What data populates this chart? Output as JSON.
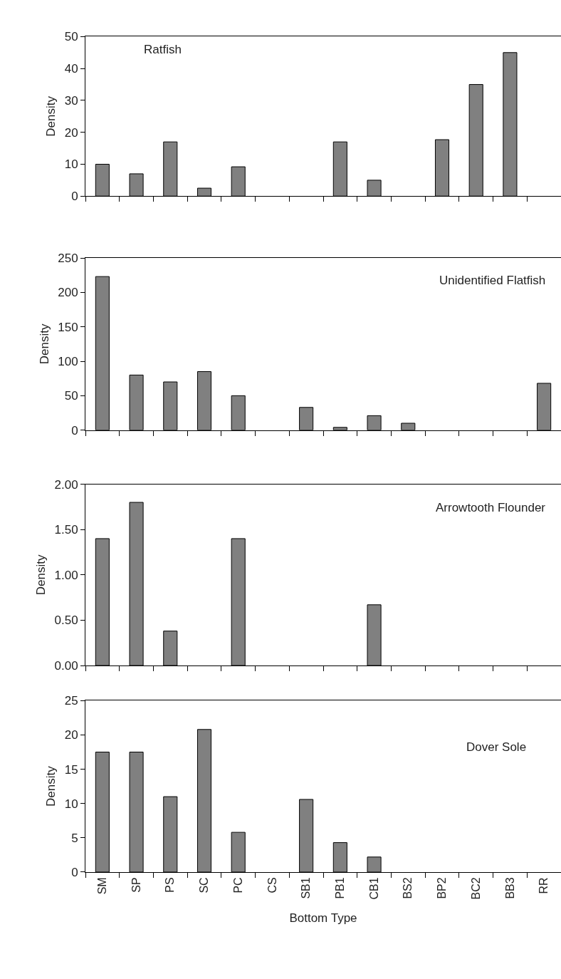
{
  "chart_data": [
    {
      "type": "bar",
      "categories": [
        "SM",
        "SP",
        "PS",
        "SC",
        "PC",
        "CS",
        "SB1",
        "PB1",
        "CB1",
        "BS2",
        "BP2",
        "BC2",
        "BB3",
        "RR"
      ],
      "values": [
        10,
        7,
        17,
        2.5,
        9.2,
        0,
        0,
        17,
        5,
        0,
        17.7,
        35,
        45,
        0
      ],
      "color": "#808080",
      "ylabel": "Density",
      "annotations": [
        "Ratfish"
      ],
      "ylim": [
        0,
        50
      ],
      "yticks": [
        0,
        10,
        20,
        30,
        40,
        50
      ],
      "tick_labels": "y",
      "grid": false,
      "legend": false
    },
    {
      "type": "bar",
      "categories": [
        "SM",
        "SP",
        "PS",
        "SC",
        "PC",
        "CS",
        "SB1",
        "PB1",
        "CB1",
        "BS2",
        "BP2",
        "BC2",
        "BB3",
        "RR"
      ],
      "values": [
        223,
        80,
        70,
        85,
        50,
        0,
        33,
        4,
        21,
        10,
        0,
        0,
        0,
        68
      ],
      "color": "#808080",
      "ylabel": "Density",
      "annotations": [
        "Unidentified Flatfish"
      ],
      "ylim": [
        0,
        250
      ],
      "yticks": [
        0,
        50,
        100,
        150,
        200,
        250
      ],
      "tick_labels": "y",
      "grid": false,
      "legend": false
    },
    {
      "type": "bar",
      "categories": [
        "SM",
        "SP",
        "PS",
        "SC",
        "PC",
        "CS",
        "SB1",
        "PB1",
        "CB1",
        "BS2",
        "BP2",
        "BC2",
        "BB3",
        "RR"
      ],
      "values": [
        1.4,
        1.8,
        0.38,
        0,
        1.4,
        0,
        0,
        0,
        0.67,
        0,
        0,
        0,
        0,
        0
      ],
      "color": "#808080",
      "ylabel": "Density",
      "annotations": [
        "Arrowtooth Flounder"
      ],
      "ylim": [
        0,
        2
      ],
      "yticks": [
        {
          "value": 0,
          "label": "0.00"
        },
        {
          "value": 0.5,
          "label": "0.50"
        },
        {
          "value": 1,
          "label": "1.00"
        },
        {
          "value": 1.5,
          "label": "1.50"
        },
        {
          "value": 2,
          "label": "2.00"
        }
      ],
      "tick_labels": "y",
      "grid": false,
      "legend": false
    },
    {
      "type": "bar",
      "categories": [
        "SM",
        "SP",
        "PS",
        "SC",
        "PC",
        "CS",
        "SB1",
        "PB1",
        "CB1",
        "BS2",
        "BP2",
        "BC2",
        "BB3",
        "RR"
      ],
      "values": [
        17.5,
        17.5,
        11,
        20.8,
        5.8,
        0,
        10.6,
        4.3,
        2.2,
        0,
        0,
        0,
        0,
        0
      ],
      "color": "#808080",
      "xlabel": "Bottom Type",
      "ylabel": "Density",
      "annotations": [
        "Dover Sole"
      ],
      "ylim": [
        0,
        25
      ],
      "yticks": [
        0,
        5,
        10,
        15,
        20,
        25
      ],
      "grid": false,
      "legend": false
    }
  ]
}
